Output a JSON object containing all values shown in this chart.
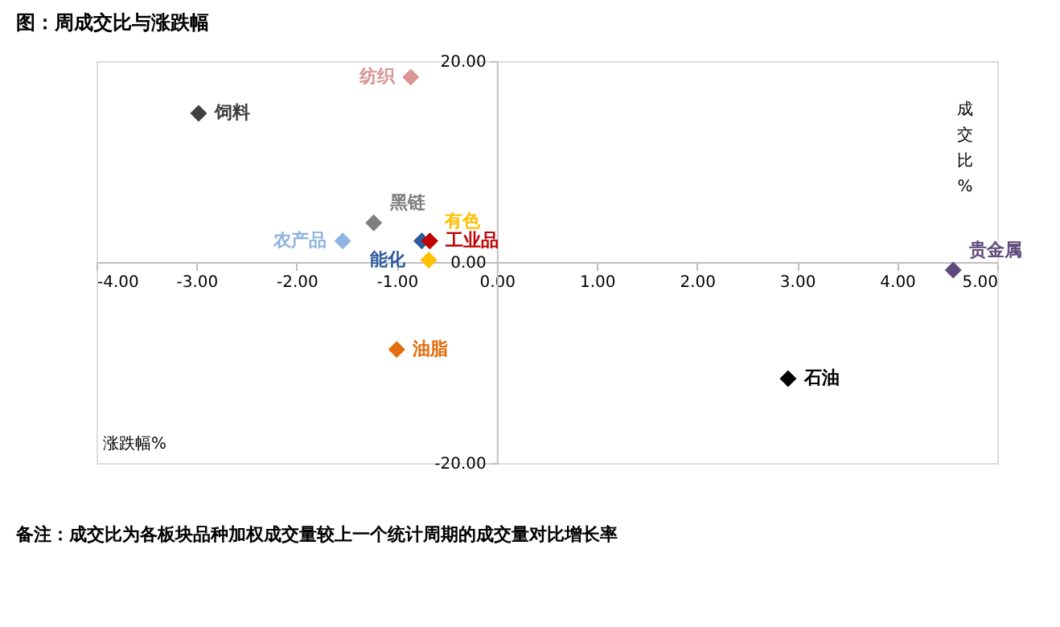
{
  "chart_data": {
    "type": "scatter",
    "title": "图：周成交比与涨跌幅",
    "xlabel": "涨跌幅%",
    "ylabel": "成交比%",
    "series": [
      {
        "name": "纺织",
        "color": "#d99694",
        "x": [
          -0.86
        ],
        "values": [
          18.4
        ]
      },
      {
        "name": "饲料",
        "color": "#404040",
        "x": [
          -2.98
        ],
        "values": [
          14.8
        ]
      },
      {
        "name": "黑链",
        "color": "#7f7f7f",
        "x": [
          -1.23
        ],
        "values": [
          3.9
        ]
      },
      {
        "name": "农产品",
        "color": "#8db4e2",
        "x": [
          -1.54
        ],
        "values": [
          2.1
        ]
      },
      {
        "name": "能化",
        "color": "#2e5a9c",
        "x": [
          -0.75
        ],
        "values": [
          2.1
        ]
      },
      {
        "name": "工业品",
        "color": "#c00000",
        "x": [
          -0.67
        ],
        "values": [
          2.1
        ]
      },
      {
        "name": "有色",
        "color": "#ffc000",
        "x": [
          -0.68
        ],
        "values": [
          0.2
        ]
      },
      {
        "name": "贵金属",
        "color": "#604a7b",
        "x": [
          4.56
        ],
        "values": [
          -0.8
        ]
      },
      {
        "name": "石油",
        "color": "#000000",
        "x": [
          2.91
        ],
        "values": [
          -11.6
        ]
      },
      {
        "name": "油脂",
        "color": "#e46c0a",
        "x": [
          -1.0
        ],
        "values": [
          -8.7
        ]
      }
    ],
    "xlim": [
      -4,
      5
    ],
    "ylim": [
      -20,
      20
    ],
    "xticks": [
      {
        "value": -4,
        "label": "-4.00"
      },
      {
        "value": -3,
        "label": "-3.00"
      },
      {
        "value": -2,
        "label": "-2.00"
      },
      {
        "value": -1,
        "label": "-1.00"
      },
      {
        "value": 0,
        "label": "0.00"
      },
      {
        "value": 1,
        "label": "1.00"
      },
      {
        "value": 2,
        "label": "2.00"
      },
      {
        "value": 3,
        "label": "3.00"
      },
      {
        "value": 4,
        "label": "4.00"
      },
      {
        "value": 5,
        "label": "5.00"
      }
    ],
    "yticks": [
      {
        "value": -20,
        "label": "-20.00"
      },
      {
        "value": 0,
        "label": "0.00"
      },
      {
        "value": 20,
        "label": "20.00"
      }
    ],
    "marker": "diamond",
    "legend": false,
    "grid": false,
    "annotations": [
      "备注：成交比为各板块品种加权成交量较上一个统计周期的成交量对比增长率"
    ]
  }
}
